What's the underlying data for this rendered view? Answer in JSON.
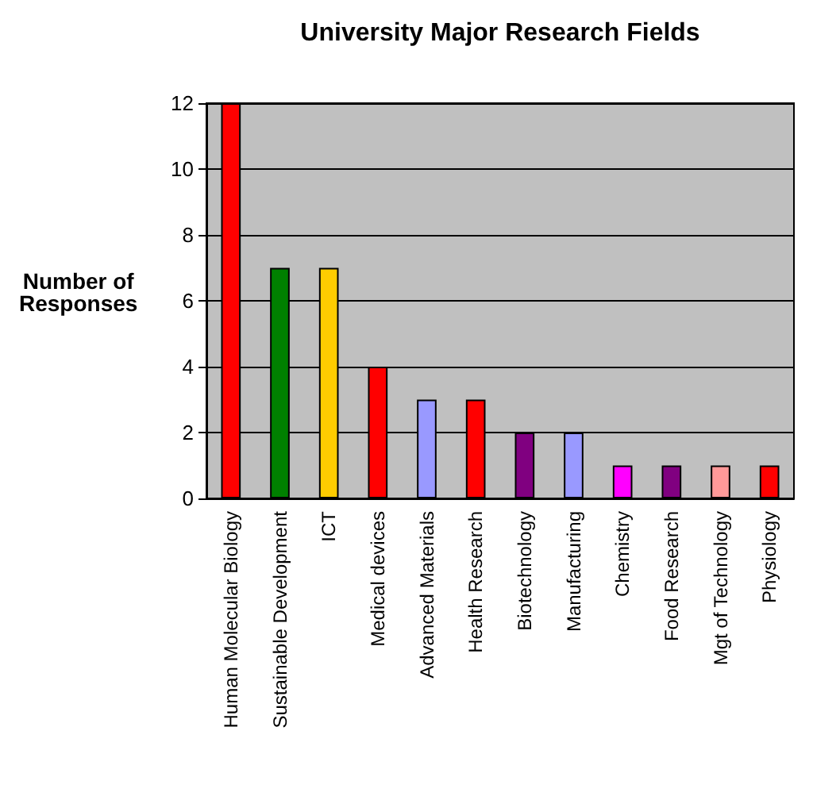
{
  "chart_data": {
    "type": "bar",
    "title": "University Major Research Fields",
    "ylabel": "Number of\nResponses",
    "categories": [
      "Human Molecular Biology",
      "Sustainable Development",
      "ICT",
      "Medical devices",
      "Advanced Materials",
      "Health Research",
      "Biotechnology",
      "Manufacturing",
      "Chemistry",
      "Food Research",
      "Mgt of Technology",
      "Physiology"
    ],
    "values": [
      12,
      7,
      7,
      4,
      3,
      3,
      2,
      2,
      1,
      1,
      1,
      1
    ],
    "colors": [
      "#ff0000",
      "#008000",
      "#ffcc00",
      "#ff0000",
      "#9999ff",
      "#ff0000",
      "#800080",
      "#9999ff",
      "#ff00ff",
      "#800080",
      "#ff9999",
      "#ff0000"
    ],
    "ylim": [
      0,
      12
    ],
    "yticks": [
      0,
      2,
      4,
      6,
      8,
      10,
      12
    ],
    "grid": "y"
  }
}
